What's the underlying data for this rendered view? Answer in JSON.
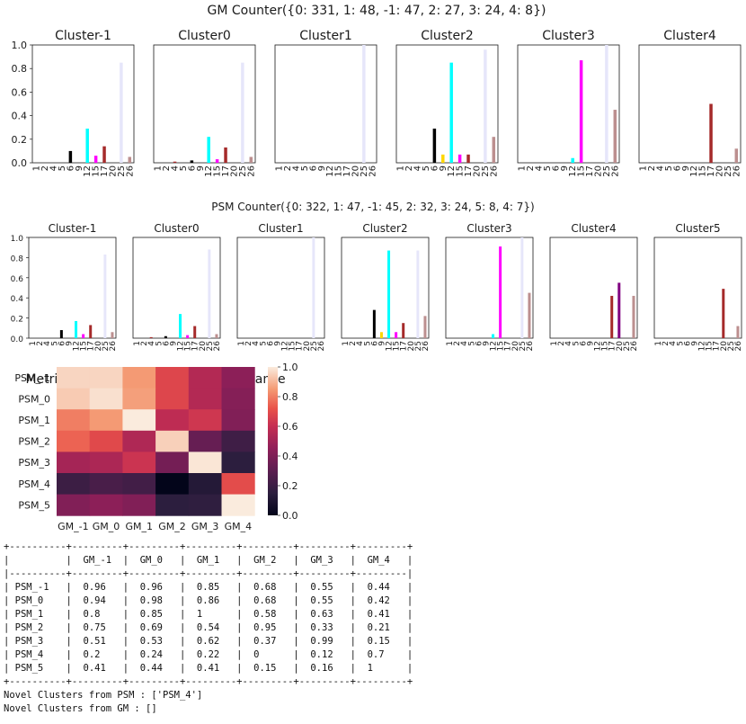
{
  "gm_title": "GM Counter({0: 331, 1: 48, -1: 47, 2: 27, 3: 24, 4: 8})",
  "psm_title": "PSM Counter({0: 322, 1: 47, -1: 45, 2: 32, 3: 24, 5: 8, 4: 7})",
  "colors": {
    "c1": "#000000",
    "c4": "#a52a2a",
    "c5": "#000000",
    "c6": "#000000",
    "c9": "#ffd700",
    "c12": "#00ffff",
    "c15": "#ff00ff",
    "c17": "#a52a2a",
    "c20": "#a52a2a",
    "c25": "#e6e6fa",
    "c26": "#bc8f8f",
    "c_purple": "#800080"
  },
  "chart_data": [
    {
      "type": "bar",
      "group": "GM",
      "categories": [
        "1",
        "2",
        "4",
        "5",
        "6",
        "9",
        "12",
        "15",
        "17",
        "20",
        "25",
        "26"
      ],
      "ylim": [
        0,
        1.0
      ],
      "yticks": [
        "0.0",
        "0.2",
        "0.4",
        "0.6",
        "0.8",
        "1.0"
      ],
      "panels": [
        {
          "title": "Cluster-1",
          "bars": [
            {
              "x": "6",
              "v": 0.1,
              "c": "#000000"
            },
            {
              "x": "12",
              "v": 0.29,
              "c": "#00ffff"
            },
            {
              "x": "15",
              "v": 0.06,
              "c": "#ff00ff"
            },
            {
              "x": "17",
              "v": 0.14,
              "c": "#a52a2a"
            },
            {
              "x": "25",
              "v": 0.85,
              "c": "#e6e6fa"
            },
            {
              "x": "26",
              "v": 0.05,
              "c": "#bc8f8f"
            }
          ]
        },
        {
          "title": "Cluster0",
          "bars": [
            {
              "x": "4",
              "v": 0.01,
              "c": "#a52a2a"
            },
            {
              "x": "6",
              "v": 0.02,
              "c": "#000000"
            },
            {
              "x": "12",
              "v": 0.22,
              "c": "#00ffff"
            },
            {
              "x": "15",
              "v": 0.03,
              "c": "#ff00ff"
            },
            {
              "x": "17",
              "v": 0.13,
              "c": "#a52a2a"
            },
            {
              "x": "25",
              "v": 0.85,
              "c": "#e6e6fa"
            },
            {
              "x": "26",
              "v": 0.05,
              "c": "#bc8f8f"
            }
          ]
        },
        {
          "title": "Cluster1",
          "bars": [
            {
              "x": "25",
              "v": 1.0,
              "c": "#e6e6fa"
            }
          ]
        },
        {
          "title": "Cluster2",
          "bars": [
            {
              "x": "6",
              "v": 0.29,
              "c": "#000000"
            },
            {
              "x": "9",
              "v": 0.07,
              "c": "#ffd700"
            },
            {
              "x": "12",
              "v": 0.85,
              "c": "#00ffff"
            },
            {
              "x": "15",
              "v": 0.07,
              "c": "#ff00ff"
            },
            {
              "x": "17",
              "v": 0.07,
              "c": "#a52a2a"
            },
            {
              "x": "25",
              "v": 0.96,
              "c": "#e6e6fa"
            },
            {
              "x": "26",
              "v": 0.22,
              "c": "#bc8f8f"
            }
          ]
        },
        {
          "title": "Cluster3",
          "bars": [
            {
              "x": "12",
              "v": 0.04,
              "c": "#00ffff"
            },
            {
              "x": "15",
              "v": 0.87,
              "c": "#ff00ff"
            },
            {
              "x": "25",
              "v": 1.0,
              "c": "#e6e6fa"
            },
            {
              "x": "26",
              "v": 0.45,
              "c": "#bc8f8f"
            }
          ]
        },
        {
          "title": "Cluster4",
          "bars": [
            {
              "x": "17",
              "v": 0.5,
              "c": "#a52a2a"
            },
            {
              "x": "26",
              "v": 0.12,
              "c": "#bc8f8f"
            }
          ]
        }
      ]
    },
    {
      "type": "bar",
      "group": "PSM",
      "categories": [
        "1",
        "2",
        "4",
        "5",
        "6",
        "9",
        "12",
        "15",
        "17",
        "20",
        "25",
        "26"
      ],
      "ylim": [
        0,
        1.0
      ],
      "yticks": [
        "0.0",
        "0.2",
        "0.4",
        "0.6",
        "0.8",
        "1.0"
      ],
      "panels": [
        {
          "title": "Cluster-1",
          "bars": [
            {
              "x": "6",
              "v": 0.08,
              "c": "#000000"
            },
            {
              "x": "12",
              "v": 0.17,
              "c": "#00ffff"
            },
            {
              "x": "15",
              "v": 0.04,
              "c": "#ff00ff"
            },
            {
              "x": "17",
              "v": 0.13,
              "c": "#a52a2a"
            },
            {
              "x": "25",
              "v": 0.83,
              "c": "#e6e6fa"
            },
            {
              "x": "26",
              "v": 0.06,
              "c": "#bc8f8f"
            }
          ]
        },
        {
          "title": "Cluster0",
          "bars": [
            {
              "x": "4",
              "v": 0.01,
              "c": "#a52a2a"
            },
            {
              "x": "6",
              "v": 0.02,
              "c": "#000000"
            },
            {
              "x": "12",
              "v": 0.24,
              "c": "#00ffff"
            },
            {
              "x": "15",
              "v": 0.03,
              "c": "#ff00ff"
            },
            {
              "x": "17",
              "v": 0.12,
              "c": "#a52a2a"
            },
            {
              "x": "25",
              "v": 0.88,
              "c": "#e6e6fa"
            },
            {
              "x": "26",
              "v": 0.04,
              "c": "#bc8f8f"
            }
          ]
        },
        {
          "title": "Cluster1",
          "bars": [
            {
              "x": "25",
              "v": 1.0,
              "c": "#e6e6fa"
            }
          ]
        },
        {
          "title": "Cluster2",
          "bars": [
            {
              "x": "6",
              "v": 0.28,
              "c": "#000000"
            },
            {
              "x": "9",
              "v": 0.06,
              "c": "#ffd700"
            },
            {
              "x": "12",
              "v": 0.87,
              "c": "#00ffff"
            },
            {
              "x": "15",
              "v": 0.06,
              "c": "#ff00ff"
            },
            {
              "x": "17",
              "v": 0.15,
              "c": "#a52a2a"
            },
            {
              "x": "25",
              "v": 0.87,
              "c": "#e6e6fa"
            },
            {
              "x": "26",
              "v": 0.22,
              "c": "#bc8f8f"
            }
          ]
        },
        {
          "title": "Cluster3",
          "bars": [
            {
              "x": "12",
              "v": 0.04,
              "c": "#00ffff"
            },
            {
              "x": "15",
              "v": 0.91,
              "c": "#ff00ff"
            },
            {
              "x": "25",
              "v": 1.0,
              "c": "#e6e6fa"
            },
            {
              "x": "26",
              "v": 0.45,
              "c": "#bc8f8f"
            }
          ]
        },
        {
          "title": "Cluster4",
          "bars": [
            {
              "x": "17",
              "v": 0.42,
              "c": "#a52a2a"
            },
            {
              "x": "20",
              "v": 0.55,
              "c": "#800080"
            },
            {
              "x": "26",
              "v": 0.42,
              "c": "#bc8f8f"
            }
          ]
        },
        {
          "title": "Cluster5",
          "bars": [
            {
              "x": "20",
              "v": 0.49,
              "c": "#a52a2a"
            },
            {
              "x": "26",
              "v": 0.12,
              "c": "#bc8f8f"
            }
          ]
        }
      ]
    },
    {
      "type": "heatmap",
      "title": "Metric = Correlation - Euclidean Distance",
      "rows": [
        "PSM_-1",
        "PSM_0",
        "PSM_1",
        "PSM_2",
        "PSM_3",
        "PSM_4",
        "PSM_5"
      ],
      "cols": [
        "GM_-1",
        "GM_0",
        "GM_1",
        "GM_2",
        "GM_3",
        "GM_4"
      ],
      "values": [
        [
          0.96,
          0.96,
          0.85,
          0.68,
          0.55,
          0.44
        ],
        [
          0.94,
          0.98,
          0.86,
          0.68,
          0.55,
          0.42
        ],
        [
          0.8,
          0.85,
          1,
          0.58,
          0.63,
          0.41
        ],
        [
          0.75,
          0.69,
          0.54,
          0.95,
          0.33,
          0.21
        ],
        [
          0.51,
          0.53,
          0.62,
          0.37,
          0.99,
          0.15
        ],
        [
          0.2,
          0.24,
          0.22,
          0,
          0.12,
          0.7
        ],
        [
          0.41,
          0.44,
          0.41,
          0.15,
          0.16,
          1
        ]
      ],
      "colorbar_ticks": [
        "0.0",
        "0.2",
        "0.4",
        "0.6",
        "0.8",
        "1.0"
      ],
      "vmin": 0,
      "vmax": 1
    }
  ],
  "table": {
    "header": [
      "",
      "GM_-1",
      "GM_0",
      "GM_1",
      "GM_2",
      "GM_3",
      "GM_4"
    ],
    "rows": [
      [
        "PSM_-1",
        "0.96",
        "0.96",
        "0.85",
        "0.68",
        "0.55",
        "0.44"
      ],
      [
        "PSM_0",
        "0.94",
        "0.98",
        "0.86",
        "0.68",
        "0.55",
        "0.42"
      ],
      [
        "PSM_1",
        "0.8",
        "0.85",
        "1",
        "0.58",
        "0.63",
        "0.41"
      ],
      [
        "PSM_2",
        "0.75",
        "0.69",
        "0.54",
        "0.95",
        "0.33",
        "0.21"
      ],
      [
        "PSM_3",
        "0.51",
        "0.53",
        "0.62",
        "0.37",
        "0.99",
        "0.15"
      ],
      [
        "PSM_4",
        "0.2",
        "0.24",
        "0.22",
        "0",
        "0.12",
        "0.7"
      ],
      [
        "PSM_5",
        "0.41",
        "0.44",
        "0.41",
        "0.15",
        "0.16",
        "1"
      ]
    ]
  },
  "novel_psm": "Novel Clusters from PSM : ['PSM_4']",
  "novel_gm": "Novel Clusters from GM : []"
}
